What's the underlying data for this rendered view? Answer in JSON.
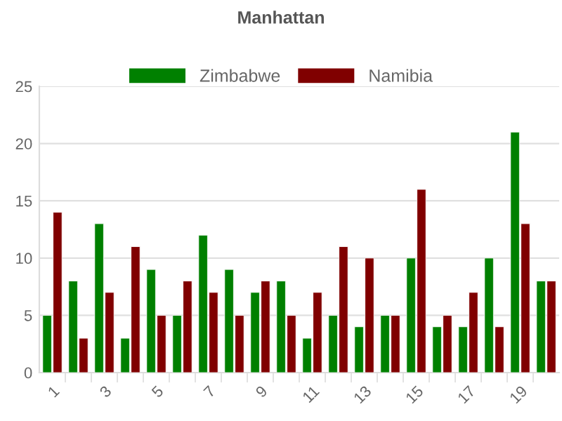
{
  "chart_data": {
    "type": "bar",
    "title": "Manhattan",
    "categories": [
      "1",
      null,
      "3",
      null,
      "5",
      null,
      "7",
      null,
      "9",
      null,
      "11",
      null,
      "13",
      null,
      "15",
      null,
      "17",
      null,
      "19",
      null
    ],
    "series": [
      {
        "name": "Zimbabwe",
        "color": "#008000",
        "values": [
          5,
          8,
          13,
          3,
          9,
          5,
          12,
          9,
          7,
          8,
          3,
          5,
          4,
          5,
          10,
          4,
          4,
          10,
          21,
          8
        ]
      },
      {
        "name": "Namibia",
        "color": "#800000",
        "values": [
          14,
          3,
          7,
          11,
          5,
          8,
          7,
          5,
          8,
          5,
          7,
          11,
          10,
          5,
          16,
          5,
          7,
          4,
          13,
          8
        ]
      }
    ],
    "ylim": [
      0,
      25
    ],
    "yticks": [
      0,
      5,
      10,
      15,
      20,
      25
    ],
    "grid": "y",
    "legend": "top"
  }
}
